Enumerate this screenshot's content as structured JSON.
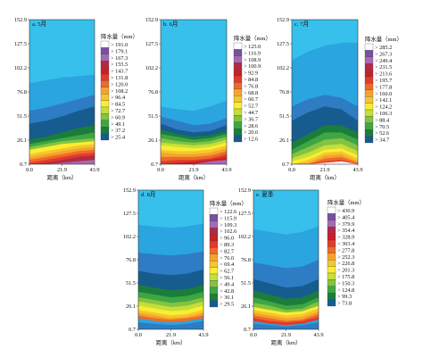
{
  "colors": {
    "legend_scale": [
      "#ffffff",
      "#7b4fa3",
      "#a56ab4",
      "#b32a45",
      "#c62128",
      "#e23a2c",
      "#ef6a2a",
      "#f6a22b",
      "#f4c631",
      "#fbee2f",
      "#c6de3a",
      "#84c341",
      "#3ea642",
      "#1b7d3b",
      "#165c8f",
      "#2e7cc4",
      "#2aa5df",
      "#37c0ec"
    ],
    "sky_top": "#36b9ea"
  },
  "chart_data": [
    {
      "type": "heatmap",
      "title": "a. 5月",
      "xlabel": "距离（km）",
      "ylabel": "",
      "x_ticks": [
        "0.0",
        "21.9",
        "43.9"
      ],
      "y_ticks": [
        "0.7",
        "26.1",
        "51.5",
        "76.8",
        "102.2",
        "127.5",
        "152.9"
      ],
      "legend_title": "降水量（mm）",
      "legend_levels": [
        "> 191.0",
        "> 179.1",
        "> 167.3",
        "> 155.5",
        "> 143.7",
        "> 131.8",
        "> 120.0",
        "> 108.2",
        "> 96.4",
        "> 84.5",
        "> 72.7",
        "> 60.9",
        "> 49.1",
        "> 37.2",
        "> 25.4"
      ]
    },
    {
      "type": "heatmap",
      "title": "b. 6月",
      "xlabel": "距离（km）",
      "ylabel": "",
      "x_ticks": [
        "0.0",
        "21.9",
        "43.9"
      ],
      "y_ticks": [
        "0.7",
        "26.1",
        "51.5",
        "76.8",
        "102.2",
        "127.5",
        "152.9"
      ],
      "legend_title": "降水量（mm）",
      "legend_levels": [
        "> 125.0",
        "> 116.9",
        "> 108.9",
        "> 100.9",
        "> 92.9",
        "> 84.8",
        "> 76.8",
        "> 68.8",
        "> 60.7",
        "> 52.7",
        "> 44.7",
        "> 36.7",
        "> 28.6",
        "> 20.6",
        "> 12.6"
      ]
    },
    {
      "type": "heatmap",
      "title": "c. 7月",
      "xlabel": "距离（km）",
      "ylabel": "",
      "x_ticks": [
        "0.0",
        "21.9",
        "43.9"
      ],
      "y_ticks": [
        "0.7",
        "26.1",
        "51.5",
        "76.8",
        "102.2",
        "127.5",
        "152.9"
      ],
      "legend_title": "降水量（mm）",
      "legend_levels": [
        "> 285.2",
        "> 267.3",
        "> 249.4",
        "> 231.5",
        "> 213.6",
        "> 195.7",
        "> 177.8",
        "> 160.0",
        "> 142.1",
        "> 124.2",
        "> 106.3",
        "> 88.4",
        "> 70.5",
        "> 52.6",
        "> 34.7"
      ]
    },
    {
      "type": "heatmap",
      "title": "d. 8月",
      "xlabel": "距离（km）",
      "ylabel": "",
      "x_ticks": [
        "0.0",
        "21.9",
        "43.9"
      ],
      "y_ticks": [
        "0.7",
        "26.1",
        "51.5",
        "76.8",
        "102.2",
        "127.5",
        "152.9"
      ],
      "legend_title": "降水量（mm）",
      "legend_levels": [
        "> 122.6",
        "> 115.9",
        "> 109.3",
        "> 102.6",
        "> 96.0",
        "> 89.3",
        "> 82.7",
        "> 76.0",
        "> 69.4",
        "> 62.7",
        "> 56.1",
        "> 49.4",
        "> 42.8",
        "> 36.1",
        "> 29.5"
      ]
    },
    {
      "type": "heatmap",
      "title": "e. 夏季",
      "xlabel": "距离（km）",
      "ylabel": "",
      "x_ticks": [
        "0.0",
        "21.9",
        "43.9"
      ],
      "y_ticks": [
        "0.7",
        "26.1",
        "51.5",
        "76.8",
        "102.2",
        "127.5",
        "152.9"
      ],
      "legend_title": "降水量（mm）",
      "legend_levels": [
        "> 430.9",
        "> 405.4",
        "> 379.9",
        "> 354.4",
        "> 328.9",
        "> 303.4",
        "> 277.8",
        "> 252.3",
        "> 226.8",
        "> 201.3",
        "> 175.8",
        "> 150.3",
        "> 124.8",
        "> 99.3",
        "> 73.8"
      ]
    }
  ]
}
